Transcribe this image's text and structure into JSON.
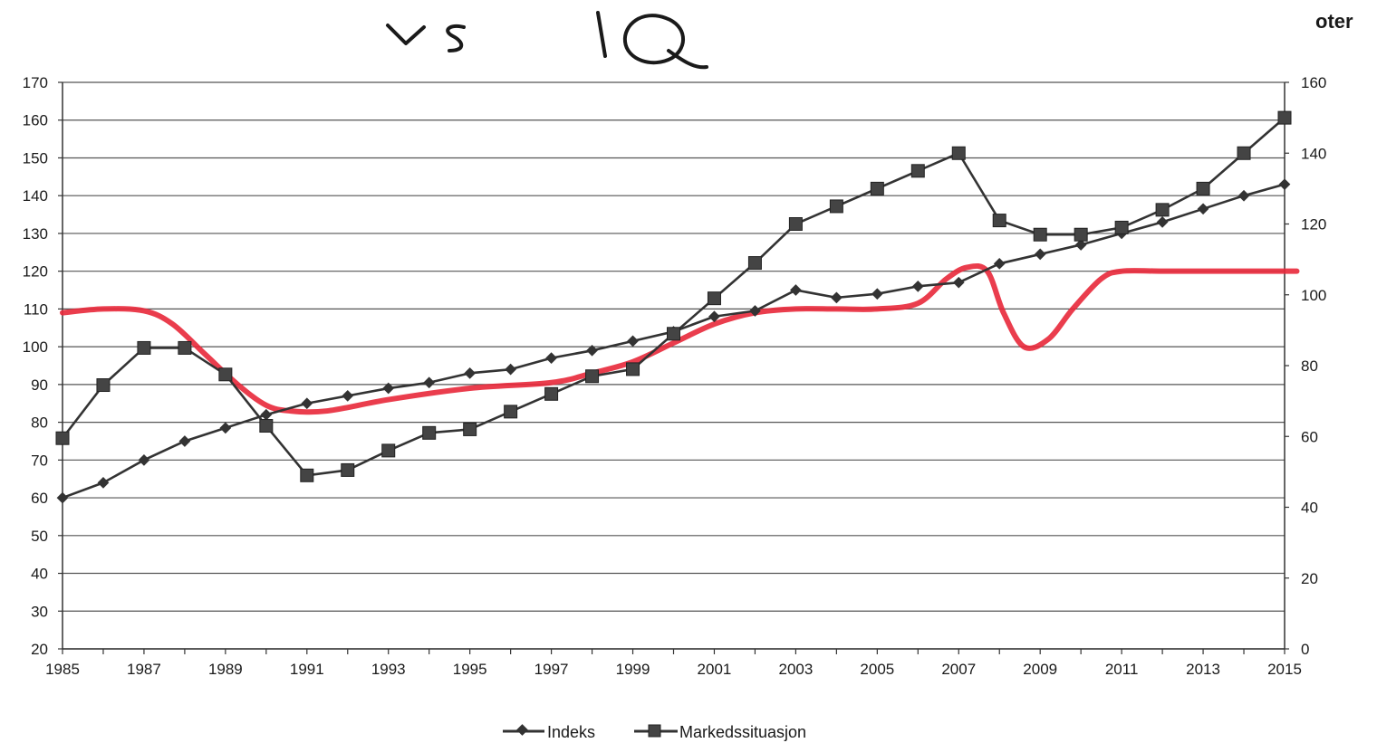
{
  "header": {
    "corner_text": "oter"
  },
  "annotation": {
    "handwritten_text": "vs IQ",
    "color": "#1a1a1a"
  },
  "chart_data": {
    "type": "line",
    "x": [
      1985,
      1986,
      1987,
      1988,
      1989,
      1990,
      1991,
      1992,
      1993,
      1994,
      1995,
      1996,
      1997,
      1998,
      1999,
      2000,
      2001,
      2002,
      2003,
      2004,
      2005,
      2006,
      2007,
      2008,
      2009,
      2010,
      2011,
      2012,
      2013,
      2014,
      2015
    ],
    "xticks": [
      "1985",
      "1987",
      "1989",
      "1991",
      "1993",
      "1995",
      "1997",
      "1999",
      "2001",
      "2003",
      "2005",
      "2007",
      "2009",
      "2011",
      "2013",
      "2015"
    ],
    "y_left_ticks": [
      "20",
      "30",
      "40",
      "50",
      "60",
      "70",
      "80",
      "90",
      "100",
      "110",
      "120",
      "130",
      "140",
      "150",
      "160",
      "170"
    ],
    "y_right_ticks": [
      "0",
      "20",
      "40",
      "60",
      "80",
      "100",
      "120",
      "140",
      "160"
    ],
    "ylim_left": [
      20,
      170
    ],
    "ylim_right": [
      0,
      160
    ],
    "grid": true,
    "legend_position": "bottom-center",
    "series": [
      {
        "name": "Indeks",
        "axis": "left",
        "marker": "diamond",
        "color": "#333333",
        "values": [
          60,
          64,
          70,
          75,
          78.5,
          82,
          85,
          87,
          89,
          90.5,
          93,
          94,
          97,
          99,
          101.5,
          104,
          108,
          109.5,
          115,
          113,
          114,
          116,
          117,
          122,
          124.5,
          127,
          130,
          133,
          136.5,
          140,
          143
        ]
      },
      {
        "name": "Markedssituasjon",
        "axis": "right",
        "marker": "square",
        "color": "#333333",
        "values": [
          59.5,
          74.5,
          85,
          85,
          77.5,
          63,
          49,
          50.5,
          56,
          61,
          62,
          67,
          72,
          77,
          79,
          89,
          99,
          109,
          120,
          125,
          130,
          135,
          140,
          121,
          117,
          117,
          119,
          124,
          130,
          140,
          150
        ]
      }
    ],
    "overlay": {
      "color": "#e8283a",
      "axis": "left",
      "x": [
        1985,
        1986,
        1987,
        1987.7,
        1988.5,
        1989.3,
        1990,
        1990.6,
        1991.5,
        1993,
        1995,
        1997,
        1998,
        1999,
        2000,
        2001,
        2002,
        2003,
        2004,
        2005,
        2006,
        2006.7,
        2007.2,
        2007.7,
        2008.1,
        2008.6,
        2009.2,
        2009.8,
        2010.5,
        2011,
        2012,
        2013,
        2014,
        2015.3
      ],
      "values": [
        109,
        110,
        109.5,
        106,
        98,
        90,
        84.5,
        83,
        83,
        86,
        89,
        90.5,
        93,
        96,
        101,
        106,
        109,
        110,
        110,
        110,
        111.5,
        118,
        121,
        120,
        109,
        100,
        102,
        110,
        118,
        120,
        120,
        120,
        120,
        120
      ]
    }
  },
  "legend": {
    "entries": [
      "Indeks",
      "Markedssituasjon"
    ]
  }
}
